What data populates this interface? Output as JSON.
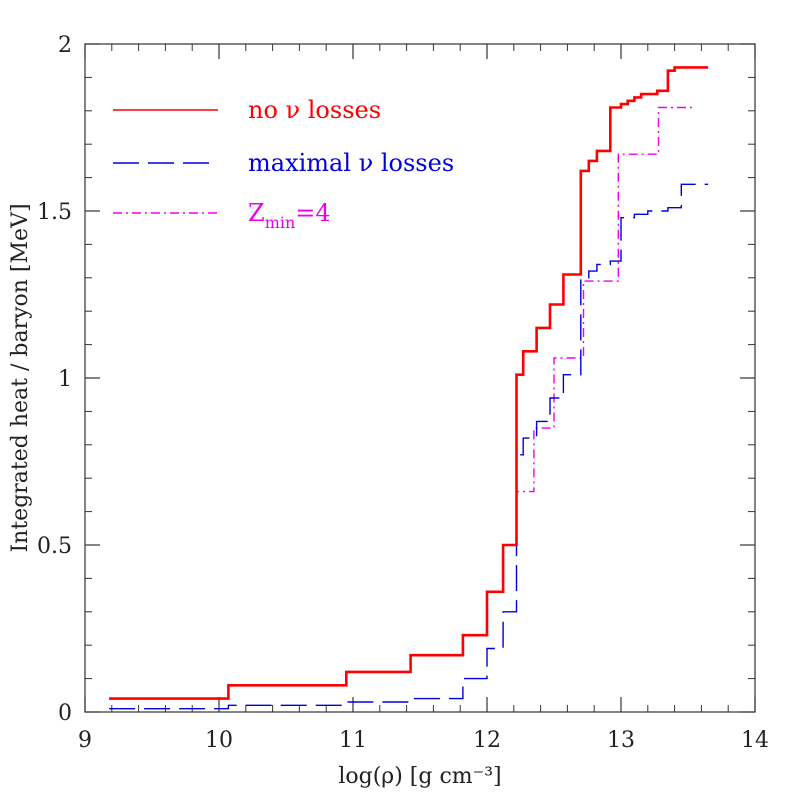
{
  "chart_data": {
    "type": "line",
    "title": "",
    "xlabel": "log(ρ) [g cm⁻³]",
    "ylabel": "Integrated heat / baryon [MeV]",
    "xlim": [
      9,
      14
    ],
    "ylim": [
      0,
      2
    ],
    "x_ticks": [
      9,
      10,
      11,
      12,
      13,
      14
    ],
    "x_tick_labels": [
      "9",
      "10",
      "11",
      "12",
      "13",
      "14"
    ],
    "y_ticks": [
      0,
      0.5,
      1,
      1.5,
      2
    ],
    "y_tick_labels": [
      "0",
      "0.5",
      "1",
      "1.5",
      "2"
    ],
    "x_minor_step": 0.2,
    "y_minor_step": 0.1,
    "grid": false,
    "legend_placement": "top-left",
    "series": [
      {
        "name": "no ν losses",
        "legend_label": "no ν losses",
        "color": "#ff0000",
        "style": "solid",
        "step": true,
        "x": [
          9.18,
          10.07,
          10.95,
          11.43,
          11.82,
          12.0,
          12.12,
          12.22,
          12.27,
          12.37,
          12.47,
          12.57,
          12.7,
          12.76,
          12.82,
          12.92,
          13.0,
          13.05,
          13.1,
          13.15,
          13.2,
          13.27,
          13.35,
          13.4,
          13.65
        ],
        "y": [
          0.04,
          0.08,
          0.12,
          0.17,
          0.23,
          0.36,
          0.5,
          1.01,
          1.08,
          1.15,
          1.22,
          1.31,
          1.62,
          1.65,
          1.68,
          1.81,
          1.82,
          1.83,
          1.84,
          1.85,
          1.85,
          1.86,
          1.92,
          1.93,
          1.93
        ]
      },
      {
        "name": "maximal ν losses",
        "legend_label": "maximal ν losses",
        "color": "#0000dd",
        "style": "long-dash",
        "step": true,
        "x": [
          9.18,
          10.07,
          10.95,
          11.43,
          11.82,
          12.0,
          12.12,
          12.22,
          12.27,
          12.37,
          12.47,
          12.57,
          12.7,
          12.76,
          12.82,
          12.92,
          13.0,
          13.1,
          13.2,
          13.35,
          13.45,
          13.65
        ],
        "y": [
          0.01,
          0.02,
          0.03,
          0.04,
          0.1,
          0.19,
          0.3,
          0.77,
          0.82,
          0.87,
          0.94,
          1.01,
          1.3,
          1.32,
          1.34,
          1.35,
          1.48,
          1.49,
          1.5,
          1.51,
          1.58,
          1.58
        ]
      },
      {
        "name": "Z_min=4",
        "legend_label": "Z",
        "legend_sub": "min",
        "legend_suffix": "=4",
        "color": "#ee00ee",
        "style": "dash-dot",
        "step": true,
        "x": [
          9.18,
          10.07,
          10.95,
          11.43,
          11.82,
          12.0,
          12.12,
          12.22,
          12.35,
          12.5,
          12.72,
          12.98,
          13.28,
          13.55
        ],
        "y": [
          0.04,
          0.08,
          0.12,
          0.17,
          0.23,
          0.36,
          0.5,
          0.66,
          0.85,
          1.06,
          1.29,
          1.67,
          1.81,
          1.81
        ]
      }
    ]
  }
}
